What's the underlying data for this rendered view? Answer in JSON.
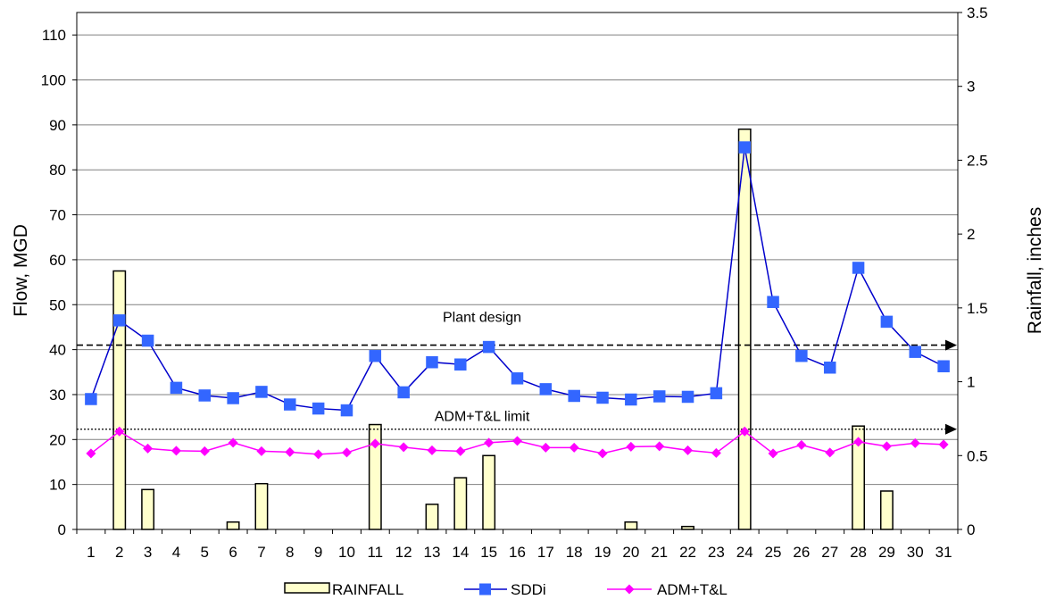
{
  "chart_data": {
    "type": "bar",
    "categories": [
      "1",
      "2",
      "3",
      "4",
      "5",
      "6",
      "7",
      "8",
      "9",
      "10",
      "11",
      "12",
      "13",
      "14",
      "15",
      "16",
      "17",
      "18",
      "19",
      "20",
      "21",
      "22",
      "23",
      "24",
      "25",
      "26",
      "27",
      "28",
      "29",
      "30",
      "31"
    ],
    "ylabel": "Flow, MGD",
    "y2label": "Rainfall, inches",
    "ylim": [
      0,
      115
    ],
    "y2lim": [
      0,
      3.5
    ],
    "yticks": [
      0,
      10,
      20,
      30,
      40,
      50,
      60,
      70,
      80,
      90,
      100,
      110
    ],
    "y2ticks": [
      "0",
      "0.5",
      "1",
      "1.5",
      "2",
      "2.5",
      "3",
      "3.5"
    ],
    "grid": true,
    "legend_position": "bottom",
    "series": [
      {
        "name": "RAINFALL",
        "type": "bar",
        "axis": "right",
        "color": "#ffffcc",
        "values": [
          0,
          1.75,
          0.27,
          0,
          0,
          0.05,
          0.31,
          0,
          0,
          0,
          0.71,
          0,
          0.17,
          0.35,
          0.5,
          0,
          0,
          0,
          0,
          0.05,
          0,
          0.02,
          0,
          2.71,
          0,
          0,
          0,
          0.7,
          0.26,
          0,
          0
        ]
      },
      {
        "name": "SDDi",
        "type": "line",
        "axis": "left",
        "color": "#0000cc",
        "marker_color": "#3366ff",
        "marker": "square",
        "values": [
          29,
          46.5,
          42,
          31.5,
          29.8,
          29.2,
          30.6,
          27.8,
          26.9,
          26.5,
          38.6,
          30.5,
          37.2,
          36.7,
          40.6,
          33.6,
          31.2,
          29.7,
          29.3,
          28.9,
          29.6,
          29.5,
          30.3,
          85,
          50.6,
          38.6,
          36,
          58.2,
          46.2,
          39.5,
          36.3
        ]
      },
      {
        "name": "ADM+T&L",
        "type": "line",
        "axis": "left",
        "color": "#ff00ff",
        "marker": "diamond",
        "values": [
          16.9,
          21.8,
          18,
          17.5,
          17.4,
          19.3,
          17.4,
          17.2,
          16.7,
          17.1,
          19.1,
          18.3,
          17.6,
          17.4,
          19.3,
          19.7,
          18.2,
          18.2,
          16.9,
          18.4,
          18.5,
          17.6,
          17,
          21.8,
          16.9,
          18.8,
          17.1,
          19.5,
          18.5,
          19.2,
          18.9
        ]
      }
    ],
    "reference_lines": [
      {
        "label": "Plant design",
        "value": 41,
        "style": "dashed",
        "color": "#000000"
      },
      {
        "label": "ADM+T&L limit",
        "value": 22.3,
        "style": "dotted",
        "color": "#000000"
      }
    ]
  }
}
